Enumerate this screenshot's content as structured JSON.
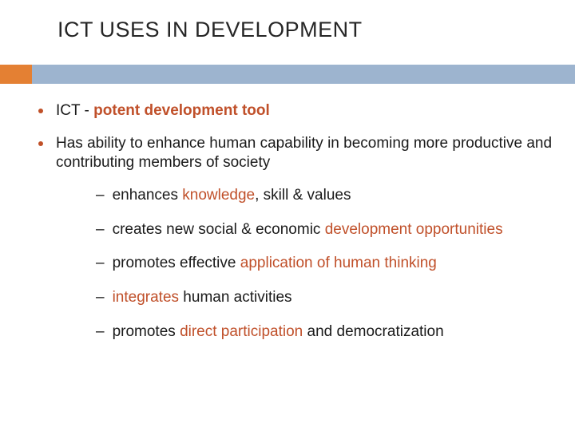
{
  "slide": {
    "title": "ICT USES IN DEVELOPMENT",
    "title_color": "#262626",
    "title_fontsize": 27,
    "bar_orange_color": "#e48033",
    "bar_blue_color": "#9db4cf",
    "bullet_color": "#c05028",
    "highlight_color": "#c0502a",
    "text_color": "#1a1a1a",
    "body_fontsize": 19,
    "bullets": [
      {
        "segments": [
          {
            "text": "ICT - ",
            "bold": false,
            "hl": false
          },
          {
            "text": "potent development tool",
            "bold": true,
            "hl": true
          }
        ]
      },
      {
        "segments": [
          {
            "text": "Has ability to enhance human capability in becoming more productive and contributing members of society",
            "bold": false,
            "hl": false
          }
        ],
        "subs": [
          [
            {
              "text": "enhances ",
              "hl": false
            },
            {
              "text": "knowledge",
              "hl": true
            },
            {
              "text": ", skill & values",
              "hl": false
            }
          ],
          [
            {
              "text": "creates new social & economic ",
              "hl": false
            },
            {
              "text": "development opportunities",
              "hl": true
            }
          ],
          [
            {
              "text": "promotes effective ",
              "hl": false
            },
            {
              "text": "application of human thinking",
              "hl": true
            }
          ],
          [
            {
              "text": "integrates",
              "hl": true
            },
            {
              "text": " human activities",
              "hl": false
            }
          ],
          [
            {
              "text": "promotes ",
              "hl": false
            },
            {
              "text": "direct participation",
              "hl": true
            },
            {
              "text": " and democratization",
              "hl": false
            }
          ]
        ]
      }
    ]
  }
}
